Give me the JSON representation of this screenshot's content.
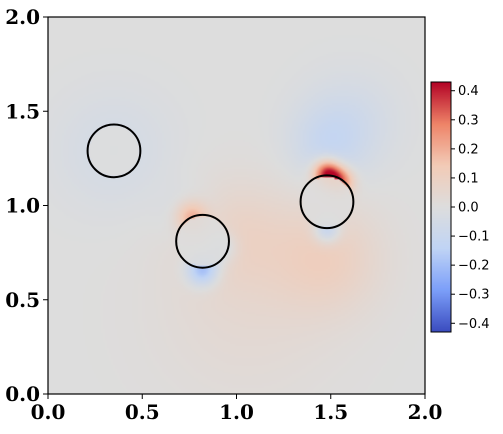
{
  "chart_data": {
    "type": "heatmap",
    "title": "",
    "xlabel": "",
    "ylabel": "",
    "xlim": [
      0.0,
      2.0
    ],
    "ylim": [
      0.0,
      2.0
    ],
    "x_ticks": [
      0.0,
      0.5,
      1.0,
      1.5,
      2.0
    ],
    "y_ticks": [
      0.0,
      0.5,
      1.0,
      1.5,
      2.0
    ],
    "x_tick_labels": [
      "0.0",
      "0.5",
      "1.0",
      "1.5",
      "2.0"
    ],
    "y_tick_labels": [
      "0.0",
      "0.5",
      "1.0",
      "1.5",
      "2.0"
    ],
    "grid": false,
    "colormap": "coolwarm",
    "colorbar": {
      "placement": "right",
      "range": [
        -0.43,
        0.43
      ],
      "ticks": [
        0.4,
        0.3,
        0.2,
        0.1,
        0.0,
        -0.1,
        -0.2,
        -0.3,
        -0.4
      ],
      "tick_labels": [
        "0.4",
        "0.3",
        "0.2",
        "0.1",
        "0.0",
        "−0.1",
        "−0.2",
        "−0.3",
        "−0.4"
      ]
    },
    "circles": [
      {
        "cx": 0.35,
        "cy": 1.29,
        "r": 0.14
      },
      {
        "cx": 0.82,
        "cy": 0.81,
        "r": 0.14
      },
      {
        "cx": 1.48,
        "cy": 1.02,
        "r": 0.14
      }
    ],
    "field_features": [
      {
        "x": 0.35,
        "y": 1.29,
        "strength": -0.05,
        "spread": 0.22
      },
      {
        "x": 0.75,
        "y": 0.95,
        "strength": -0.06,
        "spread": 0.1
      },
      {
        "x": 0.76,
        "y": 0.94,
        "strength": 0.22,
        "spread": 0.06
      },
      {
        "x": 0.82,
        "y": 0.66,
        "strength": -0.25,
        "spread": 0.06
      },
      {
        "x": 0.92,
        "y": 0.78,
        "strength": -0.12,
        "spread": 0.06
      },
      {
        "x": 1.0,
        "y": 0.85,
        "strength": 0.07,
        "spread": 0.2
      },
      {
        "x": 1.48,
        "y": 1.17,
        "strength": 0.42,
        "spread": 0.05
      },
      {
        "x": 1.55,
        "y": 1.13,
        "strength": 0.3,
        "spread": 0.05
      },
      {
        "x": 1.48,
        "y": 1.32,
        "strength": -0.08,
        "spread": 0.14
      },
      {
        "x": 1.6,
        "y": 1.45,
        "strength": -0.06,
        "spread": 0.18
      },
      {
        "x": 1.48,
        "y": 0.87,
        "strength": -0.18,
        "spread": 0.05
      },
      {
        "x": 1.48,
        "y": 0.72,
        "strength": 0.1,
        "spread": 0.2
      },
      {
        "x": 1.05,
        "y": 0.45,
        "strength": 0.04,
        "spread": 0.35
      }
    ]
  }
}
